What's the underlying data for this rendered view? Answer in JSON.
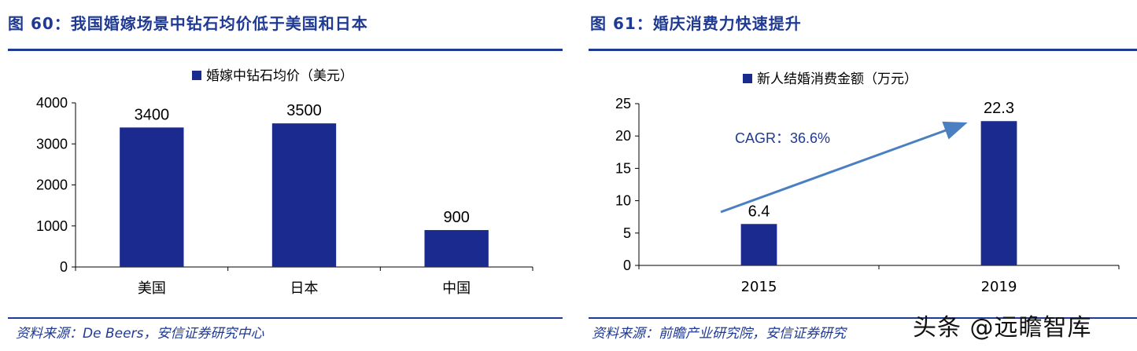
{
  "colors": {
    "bar": "#1a2a8e",
    "title": "#1f3a93",
    "arrow": "#4a7fc1",
    "axis": "#000000"
  },
  "left": {
    "title": "图 60：我国婚嫁场景中钻石均价低于美国和日本",
    "source": "资料来源：De Beers，安信证券研究中心"
  },
  "right": {
    "title": "图 61：婚庆消费力快速提升",
    "source": "资料来源：前瞻产业研究院，安信证券研究"
  },
  "watermark": "头条 @远瞻智库",
  "chart_data": [
    {
      "type": "bar",
      "categories": [
        "美国",
        "日本",
        "中国"
      ],
      "series": [
        {
          "name": "婚嫁中钻石均价（美元）",
          "values": [
            3400,
            3500,
            900
          ]
        }
      ],
      "data_labels": [
        "3400",
        "3500",
        "900"
      ],
      "ylim": [
        0,
        4000
      ],
      "yticks": [
        "0",
        "1000",
        "2000",
        "3000",
        "4000"
      ],
      "ytick_values": [
        0,
        1000,
        2000,
        3000,
        4000
      ],
      "legend": "top-center",
      "grid": false
    },
    {
      "type": "bar",
      "categories": [
        "2015",
        "2019"
      ],
      "series": [
        {
          "name": "新人结婚消费金额（万元）",
          "values": [
            6.4,
            22.3
          ]
        }
      ],
      "data_labels": [
        "6.4",
        "22.3"
      ],
      "ylim": [
        0,
        25
      ],
      "yticks": [
        "0",
        "5",
        "10",
        "15",
        "20",
        "25"
      ],
      "ytick_values": [
        0,
        5,
        10,
        15,
        20,
        25
      ],
      "annotation": "CAGR：36.6%",
      "legend": "top-center",
      "grid": false
    }
  ]
}
